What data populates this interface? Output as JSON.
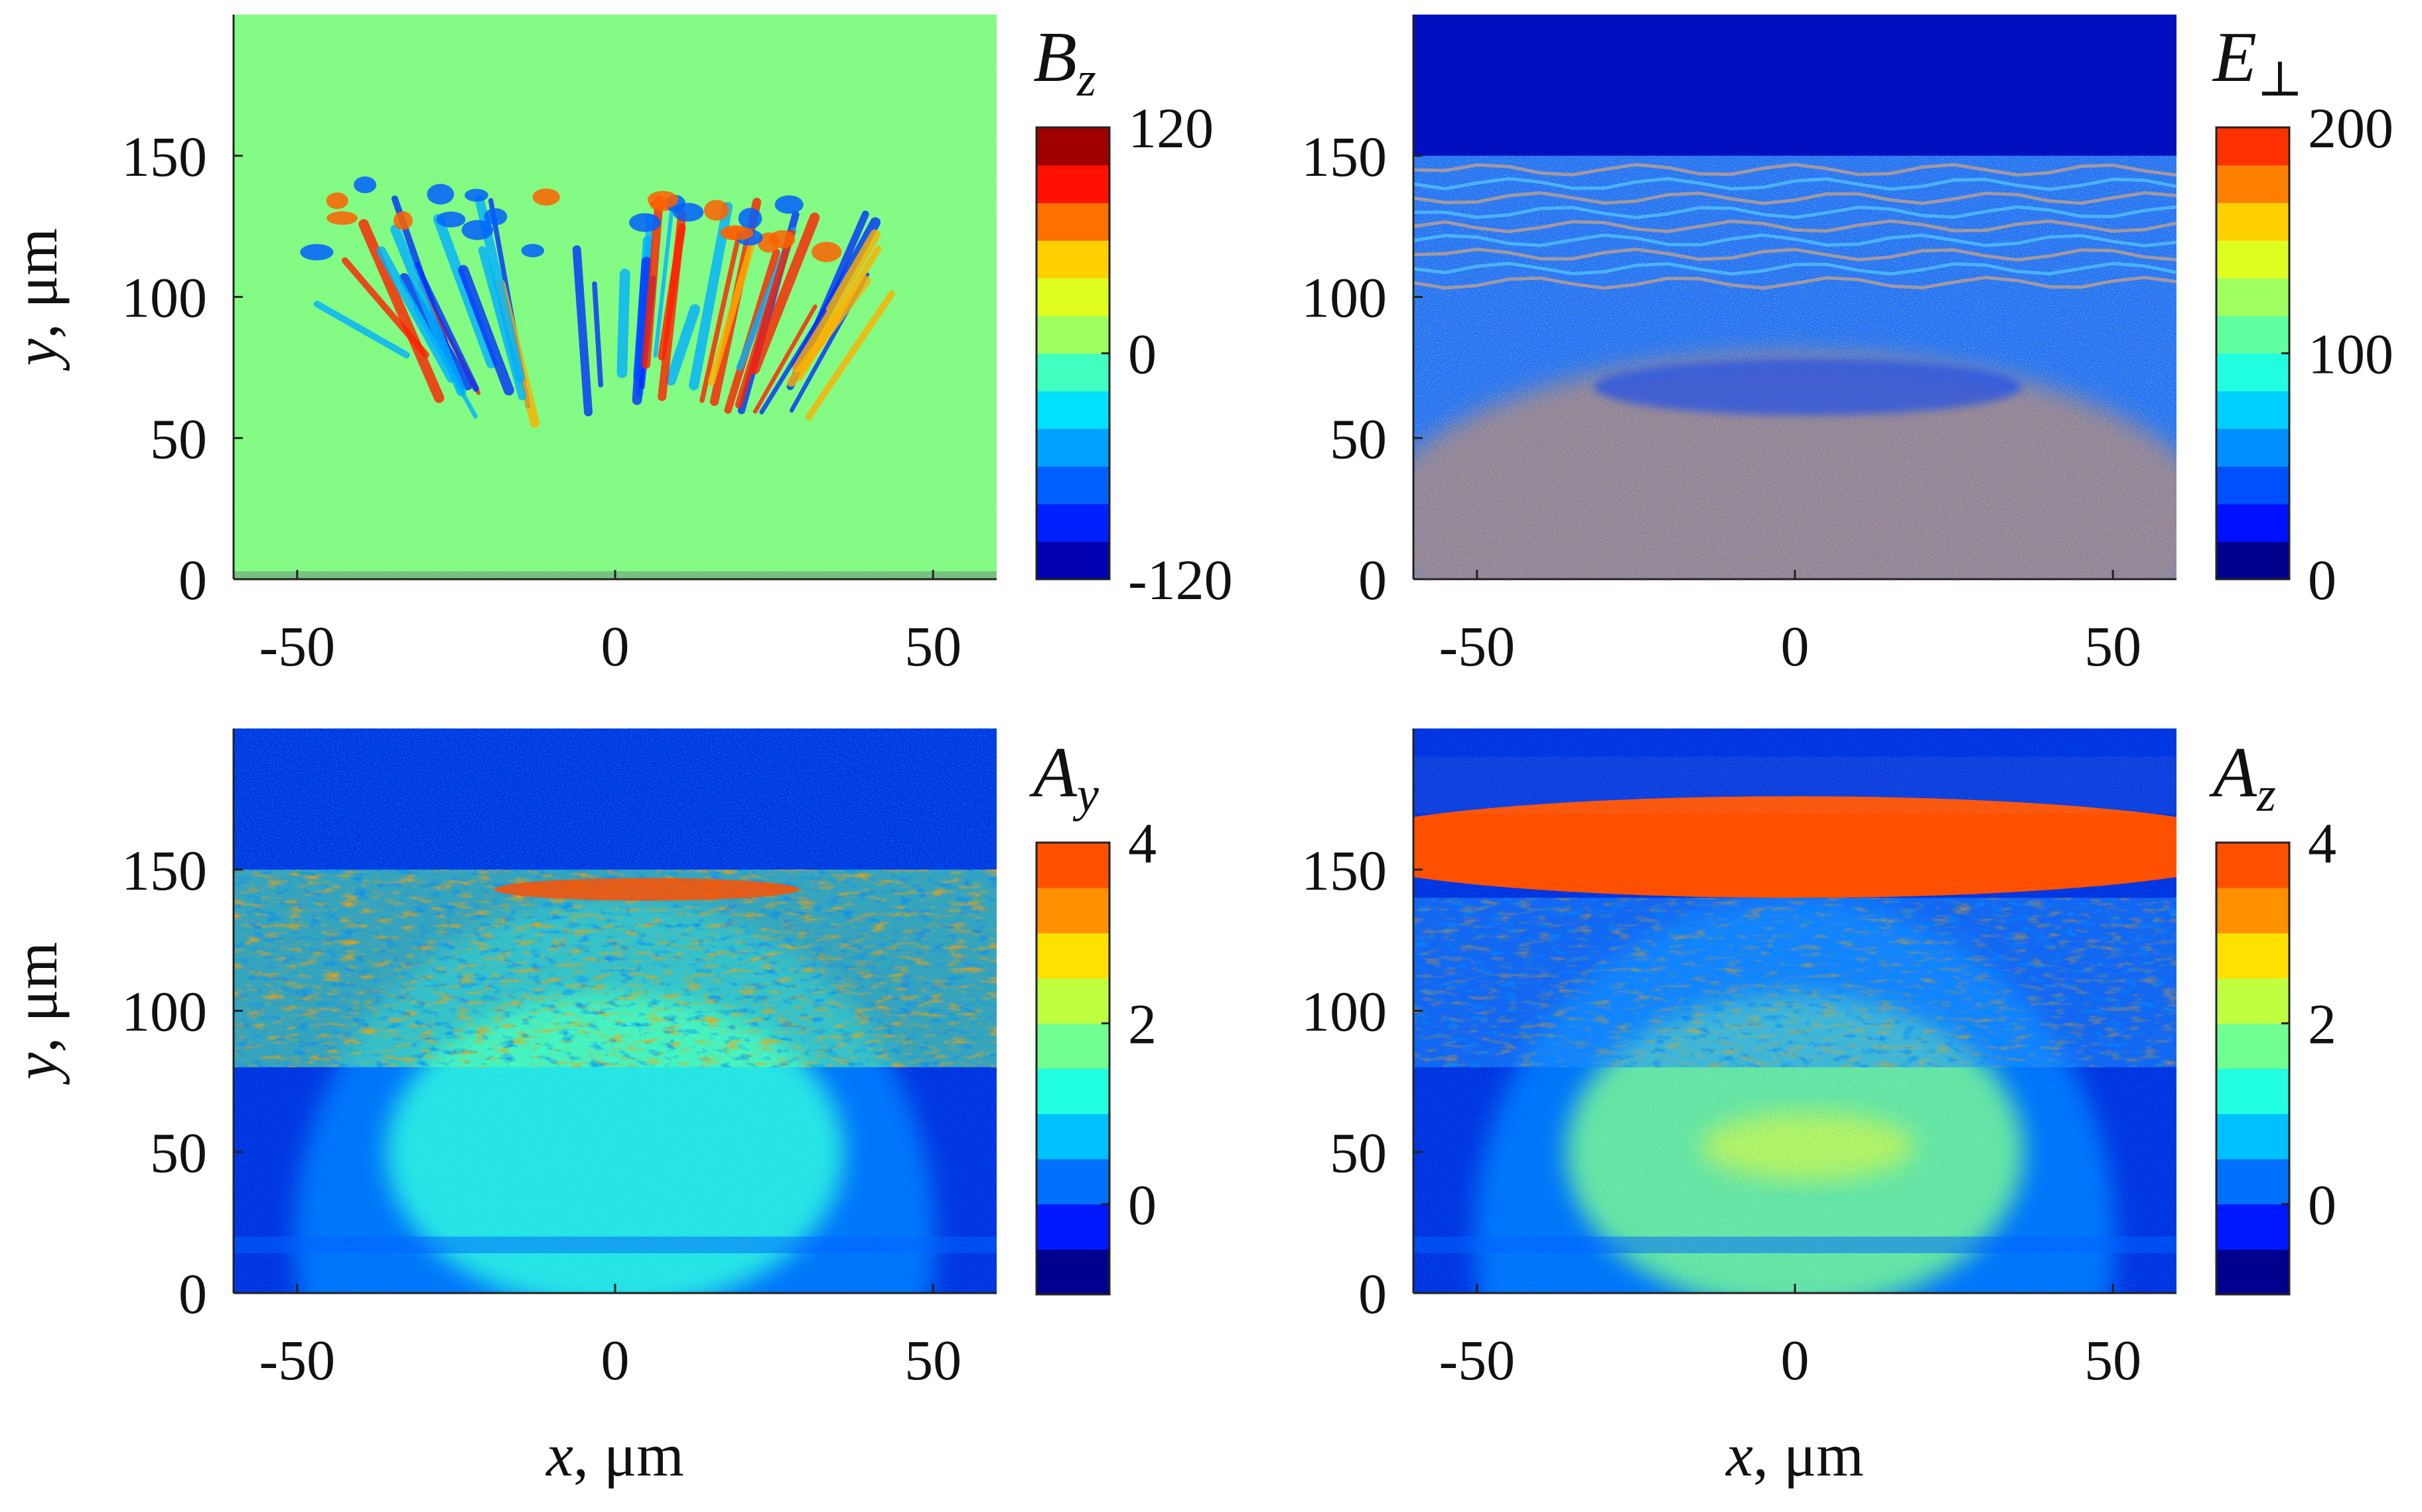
{
  "chart_data": [
    {
      "type": "heatmap",
      "title": "B_z",
      "colorbar_title": "B",
      "colorbar_subscript": "z",
      "xlim": [
        -60,
        60
      ],
      "ylim": [
        0,
        200
      ],
      "x_ticks": [
        "-50",
        "0",
        "50"
      ],
      "y_ticks": [
        "0",
        "50",
        "100",
        "150"
      ],
      "x_tick_values": [
        -50,
        0,
        50
      ],
      "y_tick_values": [
        0,
        50,
        100,
        150
      ],
      "xlabel": "",
      "ylabel": "y, μm",
      "ylabel_var": "y",
      "ylabel_unit": "μm",
      "colorbar_range": [
        -120,
        120
      ],
      "colorbar_ticks": [
        "120",
        "0",
        "-120"
      ],
      "colorbar_tick_values": [
        120,
        0,
        -120
      ],
      "colorbar_levels": 12,
      "colormap": "jet",
      "background_color": "#80ff80",
      "field": "bz"
    },
    {
      "type": "heatmap",
      "title": "E_⊥",
      "colorbar_title": "E",
      "colorbar_subscript": "⊥",
      "xlim": [
        -60,
        60
      ],
      "ylim": [
        0,
        200
      ],
      "x_ticks": [
        "-50",
        "0",
        "50"
      ],
      "y_ticks": [
        "0",
        "50",
        "100",
        "150"
      ],
      "x_tick_values": [
        -50,
        0,
        50
      ],
      "y_tick_values": [
        0,
        50,
        100,
        150
      ],
      "xlabel": "",
      "ylabel": "",
      "colorbar_range": [
        0,
        200
      ],
      "colorbar_ticks": [
        "200",
        "100",
        "0"
      ],
      "colorbar_tick_values": [
        200,
        100,
        0
      ],
      "colorbar_levels": 12,
      "colormap": "jet",
      "background_color": "#0010c0",
      "field": "eperp"
    },
    {
      "type": "heatmap",
      "title": "A_y",
      "colorbar_title": "A",
      "colorbar_subscript": "y",
      "xlim": [
        -60,
        60
      ],
      "ylim": [
        0,
        200
      ],
      "x_ticks": [
        "-50",
        "0",
        "50"
      ],
      "y_ticks": [
        "0",
        "50",
        "100",
        "150"
      ],
      "x_tick_values": [
        -50,
        0,
        50
      ],
      "y_tick_values": [
        0,
        50,
        100,
        150
      ],
      "xlabel": "x, μm",
      "xlabel_var": "x",
      "xlabel_unit": "μm",
      "ylabel": "y, μm",
      "ylabel_var": "y",
      "ylabel_unit": "μm",
      "colorbar_range": [
        -1,
        4
      ],
      "colorbar_ticks": [
        "4",
        "2",
        "0"
      ],
      "colorbar_tick_values": [
        4,
        2,
        0
      ],
      "colorbar_levels": 10,
      "colormap": "jet",
      "background_color": "#0030e0",
      "field": "ay"
    },
    {
      "type": "heatmap",
      "title": "A_z",
      "colorbar_title": "A",
      "colorbar_subscript": "z",
      "xlim": [
        -60,
        60
      ],
      "ylim": [
        0,
        200
      ],
      "x_ticks": [
        "-50",
        "0",
        "50"
      ],
      "y_ticks": [
        "0",
        "50",
        "100",
        "150"
      ],
      "x_tick_values": [
        -50,
        0,
        50
      ],
      "y_tick_values": [
        0,
        50,
        100,
        150
      ],
      "xlabel": "x, μm",
      "xlabel_var": "x",
      "xlabel_unit": "μm",
      "ylabel": "",
      "colorbar_range": [
        -1,
        4
      ],
      "colorbar_ticks": [
        "4",
        "2",
        "0"
      ],
      "colorbar_tick_values": [
        4,
        2,
        0
      ],
      "colorbar_levels": 10,
      "colormap": "jet",
      "background_color": "#0030e0",
      "field": "az"
    }
  ],
  "colors": {
    "jet12": [
      "#00008f",
      "#0010ff",
      "#0050ff",
      "#0090ff",
      "#00d0ff",
      "#20ffe0",
      "#60ffa0",
      "#a0ff60",
      "#e0ff20",
      "#ffd000",
      "#ff8000",
      "#ff3000"
    ],
    "jet12_bz": [
      "#0000b0",
      "#0020ff",
      "#0060ff",
      "#00a0ff",
      "#00e0ff",
      "#40ffc0",
      "#a0ff60",
      "#e0ff20",
      "#ffd000",
      "#ff7000",
      "#ff1000",
      "#a00000"
    ],
    "jet10": [
      "#00008f",
      "#0018ff",
      "#0070ff",
      "#00c0ff",
      "#20ffe0",
      "#70ff90",
      "#c0ff40",
      "#ffe000",
      "#ff9000",
      "#ff5000"
    ]
  }
}
